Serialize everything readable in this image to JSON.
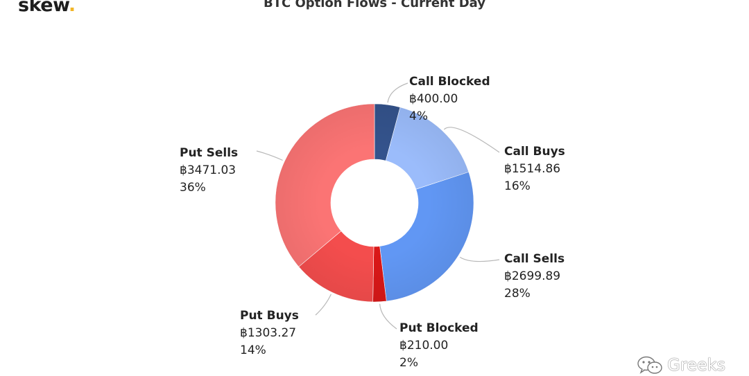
{
  "brand": {
    "logo_text": "skew",
    "logo_dot": "."
  },
  "watermark": {
    "text": "Greeks"
  },
  "chart_data": {
    "type": "pie",
    "donut": true,
    "title": "BTC Option Flows - Current Day",
    "slices": [
      {
        "name": "Call Blocked",
        "value": 400.0,
        "value_label": "฿400.00",
        "percent": "4%",
        "color": "#34538c"
      },
      {
        "name": "Call Buys",
        "value": 1514.86,
        "value_label": "฿1514.86",
        "percent": "16%",
        "color": "#9bbcfb"
      },
      {
        "name": "Call Sells",
        "value": 2699.89,
        "value_label": "฿2699.89",
        "percent": "28%",
        "color": "#6197f4"
      },
      {
        "name": "Put Blocked",
        "value": 210.0,
        "value_label": "฿210.00",
        "percent": "2%",
        "color": "#d91818"
      },
      {
        "name": "Put Buys",
        "value": 1303.27,
        "value_label": "฿1303.27",
        "percent": "14%",
        "color": "#f44d4d"
      },
      {
        "name": "Put Sells",
        "value": 3471.03,
        "value_label": "฿3471.03",
        "percent": "36%",
        "color": "#fb7474"
      }
    ]
  }
}
